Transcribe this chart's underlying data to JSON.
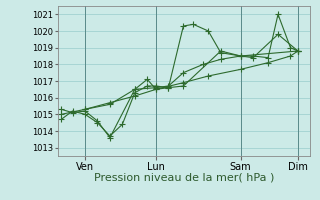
{
  "background_color": "#cceae7",
  "grid_color": "#99cccc",
  "line_color": "#2d6a2d",
  "marker_color": "#2d6a2d",
  "xlabel": "Pression niveau de la mer( hPa )",
  "ylim": [
    1012.5,
    1021.5
  ],
  "yticks": [
    1013,
    1014,
    1015,
    1016,
    1017,
    1018,
    1019,
    1020,
    1021
  ],
  "xtick_labels": [
    "Ven",
    "Lun",
    "Sam",
    "Dim"
  ],
  "xtick_positions": [
    0.95,
    3.8,
    7.2,
    9.5
  ],
  "series": [
    [
      1014.7,
      1015.2,
      1015.0,
      1014.5,
      1013.7,
      1014.4,
      1016.3,
      1016.7,
      1016.7,
      1016.6,
      1020.3,
      1020.4,
      1020.0,
      1018.7,
      1018.5,
      1018.5,
      1018.4,
      1021.0,
      1019.0,
      1018.8
    ],
    [
      1015.3,
      1015.1,
      1015.2,
      1014.6,
      1013.6,
      1016.5,
      1017.1,
      1016.5,
      1016.6,
      1016.7,
      1018.8,
      1018.5,
      1018.4,
      1019.8,
      1018.8
    ],
    [
      1015.3,
      1015.6,
      1016.5,
      1016.6,
      1016.7,
      1017.5,
      1018.0,
      1018.3,
      1018.5,
      1018.8
    ],
    [
      1015.0,
      1015.3,
      1015.7,
      1016.1,
      1016.5,
      1016.9,
      1017.3,
      1017.7,
      1018.1,
      1018.5,
      1018.8
    ]
  ],
  "series_x": [
    [
      0.0,
      0.45,
      0.95,
      1.45,
      1.95,
      2.45,
      2.95,
      3.45,
      3.8,
      4.3,
      4.9,
      5.3,
      5.9,
      6.4,
      7.2,
      7.7,
      8.3,
      8.7,
      9.2,
      9.5
    ],
    [
      0.0,
      0.45,
      0.95,
      1.45,
      1.95,
      2.95,
      3.45,
      3.8,
      4.3,
      4.9,
      6.4,
      7.2,
      7.7,
      8.7,
      9.5
    ],
    [
      0.95,
      1.95,
      2.95,
      3.8,
      4.3,
      4.9,
      5.7,
      6.4,
      7.2,
      9.5
    ],
    [
      0.0,
      0.95,
      1.95,
      2.95,
      3.8,
      4.9,
      5.9,
      7.2,
      8.3,
      9.2,
      9.5
    ]
  ],
  "marker_size": 2.5,
  "linewidth": 0.8,
  "xlabel_fontsize": 8,
  "ytick_fontsize": 6,
  "xtick_fontsize": 7,
  "figsize": [
    3.2,
    2.0
  ],
  "dpi": 100
}
